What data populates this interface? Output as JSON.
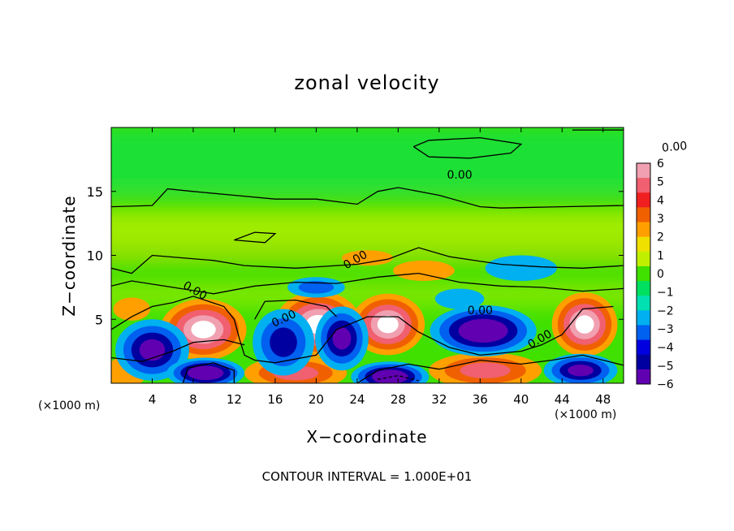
{
  "chart_data": {
    "type": "heatmap",
    "title": "zonal velocity",
    "xlabel": "X−coordinate",
    "ylabel": "Z−coordinate",
    "x_unit_label": "(×1000 m)",
    "xlim": [
      0,
      50
    ],
    "ylim": [
      0,
      20
    ],
    "x_ticks": [
      4,
      8,
      12,
      16,
      20,
      24,
      28,
      32,
      36,
      40,
      44,
      48
    ],
    "y_ticks": [
      5,
      10,
      15
    ],
    "colorbar": {
      "min": -6,
      "max": 6,
      "tick_labels": [
        "6",
        "5",
        "4",
        "3",
        "2",
        "1",
        "0",
        "−1",
        "−2",
        "−3",
        "−4",
        "−5",
        "−6"
      ],
      "colors": [
        "#f0a0b0",
        "#f06070",
        "#f02020",
        "#f06000",
        "#ffa000",
        "#f0e000",
        "#c0f000",
        "#40e000",
        "#00e060",
        "#00e0b0",
        "#00b0f0",
        "#0060f0",
        "#0000e0",
        "#0000a0",
        "#6000b0"
      ]
    },
    "contour_labels": [
      "0.00",
      "0.00",
      "0.00",
      "0.00",
      "0.00",
      "0.00",
      "0.00"
    ],
    "field": {
      "description_levels": "approximate zonal velocity field, values in colorbar units",
      "features": [
        {
          "x": 4,
          "z": 2.5,
          "value": -4.5
        },
        {
          "x": 9,
          "z": 4.5,
          "value": 6.5
        },
        {
          "x": 20,
          "z": 4.5,
          "value": 6.5
        },
        {
          "x": 17,
          "z": 1.5,
          "value": -4.5
        },
        {
          "x": 27,
          "z": 4.5,
          "value": 6.5
        },
        {
          "x": 36,
          "z": 4.0,
          "value": -6.5
        },
        {
          "x": 46,
          "z": 4.5,
          "value": 6.5
        },
        {
          "x": 46,
          "z": 1.0,
          "value": -6.0
        },
        {
          "x": 27,
          "z": 0.5,
          "value": -6.5
        },
        {
          "x": 37,
          "z": 1.0,
          "value": 5.0
        },
        {
          "x": 9,
          "z": 1.0,
          "value": -6.5
        },
        {
          "x": 24,
          "z": 9.0,
          "value": 3.0
        },
        {
          "x": 40,
          "z": 9.0,
          "value": -2.5
        },
        {
          "x": 25,
          "z": 16.5,
          "value": -1.5
        }
      ]
    }
  },
  "footer": {
    "contour_interval": "CONTOUR INTERVAL =  1.000E+01"
  }
}
